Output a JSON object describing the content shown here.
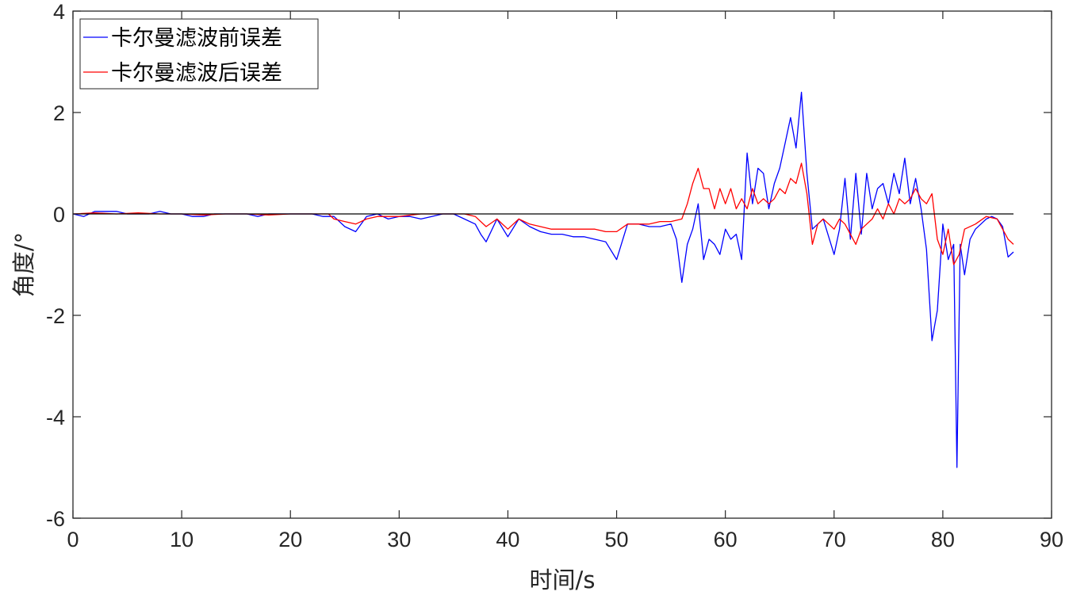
{
  "chart_data": {
    "type": "line",
    "title": "",
    "xlabel": "时间/s",
    "ylabel": "角度/°",
    "xlim": [
      0,
      90
    ],
    "ylim": [
      -6,
      4
    ],
    "xticks": [
      0,
      10,
      20,
      30,
      40,
      50,
      60,
      70,
      80,
      90
    ],
    "yticks": [
      -6,
      -4,
      -2,
      0,
      2,
      4
    ],
    "grid": false,
    "legend_position": "top-left",
    "reference_line": {
      "y": 0,
      "x_from": 0,
      "x_to": 86.5,
      "color": "#000000"
    },
    "series": [
      {
        "name": "卡尔曼滤波前误差",
        "color": "#0000ff",
        "x": [
          0,
          1,
          2,
          3,
          4,
          5,
          6,
          7,
          8,
          9,
          10,
          11,
          12,
          13,
          14,
          15,
          16,
          17,
          18,
          19,
          20,
          21,
          22,
          23,
          24,
          25,
          26,
          27,
          28,
          29,
          30,
          31,
          32,
          33,
          34,
          35,
          36,
          37,
          37.5,
          38,
          39,
          40,
          41,
          42,
          43,
          44,
          45,
          46,
          47,
          48,
          49,
          50,
          51,
          52,
          53,
          54,
          55,
          55.5,
          56,
          56.5,
          57,
          57.5,
          58,
          58.5,
          59,
          59.5,
          60,
          60.5,
          61,
          61.5,
          62,
          62.5,
          63,
          63.5,
          64,
          64.5,
          65,
          65.5,
          66,
          66.5,
          67,
          67.5,
          68,
          68.5,
          69,
          70,
          70.5,
          71,
          71.5,
          72,
          72.5,
          73,
          73.5,
          74,
          74.5,
          75,
          75.5,
          76,
          76.5,
          77,
          77.5,
          78,
          78.5,
          79,
          79.5,
          80,
          80.5,
          81,
          81.3,
          81.6,
          82,
          82.5,
          83,
          83.5,
          84,
          84.5,
          85,
          85.5,
          86,
          86.5
        ],
        "y": [
          0,
          -0.05,
          0.05,
          0.05,
          0.05,
          0,
          0,
          0,
          0.05,
          0,
          0,
          -0.05,
          -0.05,
          0,
          0,
          0,
          0,
          -0.05,
          0,
          0,
          0,
          0,
          0,
          -0.05,
          -0.05,
          -0.25,
          -0.35,
          -0.05,
          0,
          -0.1,
          -0.05,
          -0.05,
          -0.1,
          -0.05,
          0,
          0,
          -0.1,
          -0.2,
          -0.4,
          -0.55,
          -0.1,
          -0.45,
          -0.1,
          -0.25,
          -0.35,
          -0.4,
          -0.4,
          -0.45,
          -0.45,
          -0.5,
          -0.55,
          -0.9,
          -0.2,
          -0.2,
          -0.25,
          -0.25,
          -0.2,
          -0.5,
          -1.35,
          -0.6,
          -0.3,
          0.2,
          -0.9,
          -0.5,
          -0.6,
          -0.8,
          -0.3,
          -0.5,
          -0.4,
          -0.9,
          1.2,
          0.2,
          0.9,
          0.8,
          0.1,
          0.6,
          0.9,
          1.4,
          1.9,
          1.3,
          2.4,
          0.8,
          -0.3,
          -0.2,
          -0.1,
          -0.8,
          -0.3,
          0.7,
          -0.5,
          0.8,
          -0.4,
          0.8,
          0.1,
          0.5,
          0.6,
          0.2,
          0.8,
          0.4,
          1.1,
          0.2,
          0.7,
          0.1,
          -0.7,
          -2.5,
          -1.9,
          -0.2,
          -0.9,
          -0.6,
          -5.0,
          -0.6,
          -1.2,
          -0.5,
          -0.3,
          -0.2,
          -0.1,
          -0.05,
          -0.1,
          -0.25,
          -0.85,
          -0.75
        ]
      },
      {
        "name": "卡尔曼滤波后误差",
        "color": "#ff0000",
        "x": [
          0,
          2,
          4,
          6,
          8,
          10,
          12,
          14,
          16,
          18,
          20,
          22,
          23.5,
          24,
          25,
          26,
          27,
          28,
          30,
          32,
          34,
          36,
          37,
          38,
          39,
          40,
          41,
          42,
          43,
          44,
          45,
          46,
          47,
          48,
          49,
          50,
          51,
          52,
          53,
          54,
          55,
          56,
          56.5,
          57,
          57.5,
          58,
          58.5,
          59,
          59.5,
          60,
          60.5,
          61,
          61.5,
          62,
          62.5,
          63,
          63.5,
          64,
          64.5,
          65,
          65.5,
          66,
          66.5,
          67,
          67.5,
          68,
          68.5,
          69,
          70,
          70.5,
          71,
          71.5,
          72,
          72.5,
          73,
          73.5,
          74,
          74.5,
          75,
          75.5,
          76,
          76.5,
          77,
          77.5,
          78,
          78.5,
          79,
          79.5,
          80,
          80.5,
          81,
          81.5,
          82,
          83,
          84,
          85,
          86,
          86.5
        ],
        "y": [
          0,
          0.02,
          0,
          0.02,
          0,
          0,
          -0.02,
          0,
          0,
          -0.02,
          0,
          0,
          0,
          -0.1,
          -0.15,
          -0.2,
          -0.1,
          -0.05,
          -0.05,
          0,
          0,
          0,
          -0.05,
          -0.25,
          -0.1,
          -0.3,
          -0.1,
          -0.2,
          -0.25,
          -0.3,
          -0.3,
          -0.3,
          -0.3,
          -0.3,
          -0.35,
          -0.35,
          -0.2,
          -0.2,
          -0.2,
          -0.15,
          -0.15,
          -0.1,
          0.2,
          0.6,
          0.9,
          0.5,
          0.5,
          0.1,
          0.5,
          0.2,
          0.5,
          0.1,
          0.3,
          0.1,
          0.5,
          0.2,
          0.3,
          0.2,
          0.3,
          0.5,
          0.4,
          0.7,
          0.6,
          1.0,
          0.4,
          -0.6,
          -0.2,
          -0.1,
          -0.3,
          -0.1,
          -0.2,
          -0.4,
          -0.6,
          -0.3,
          -0.2,
          -0.1,
          0.1,
          -0.1,
          0.2,
          0,
          0.3,
          0.2,
          0.3,
          0.5,
          0.3,
          0.2,
          0.4,
          -0.5,
          -0.8,
          -0.3,
          -1.0,
          -0.8,
          -0.3,
          -0.2,
          -0.05,
          -0.1,
          -0.5,
          -0.6
        ]
      }
    ]
  }
}
